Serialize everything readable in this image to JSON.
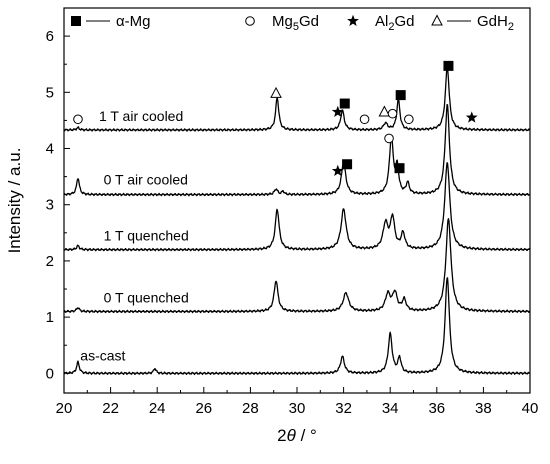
{
  "chart_data": {
    "type": "line",
    "xlabel_pre": "2",
    "xlabel_theta": "θ",
    "xlabel_post": " / °",
    "ylabel": "Intensity / a.u.",
    "xlim": [
      20,
      40
    ],
    "ylim": [
      -0.35,
      6.5
    ],
    "xticks": [
      20,
      22,
      24,
      26,
      28,
      30,
      32,
      34,
      36,
      38,
      40
    ],
    "yticks": [
      0,
      1,
      2,
      3,
      4,
      5,
      6
    ],
    "legend": [
      {
        "symbol": "square",
        "label": "α-Mg"
      },
      {
        "symbol": "circle",
        "label_main": "Mg",
        "label_sub": "5",
        "label_tail": "Gd"
      },
      {
        "symbol": "star",
        "label_main": "Al",
        "label_sub": "2",
        "label_tail": "Gd"
      },
      {
        "symbol": "triangle",
        "label_main": "GdH",
        "label_sub": "2",
        "label_tail": ""
      }
    ],
    "series": [
      {
        "name": "as-cast",
        "baseline": 0.0,
        "label_x": 20.7,
        "label_y": 0.32,
        "peaks": [
          [
            20.6,
            0.2,
            0.07
          ],
          [
            23.9,
            0.09,
            0.06
          ],
          [
            31.95,
            0.3,
            0.1
          ],
          [
            34.0,
            0.7,
            0.1
          ],
          [
            34.4,
            0.27,
            0.08
          ],
          [
            36.45,
            1.72,
            0.11
          ]
        ],
        "markers": []
      },
      {
        "name": "0 T quenched",
        "baseline": 1.1,
        "label_x": 21.7,
        "label_y": 1.35,
        "peaks": [
          [
            20.6,
            0.07,
            0.07
          ],
          [
            29.1,
            0.55,
            0.1
          ],
          [
            32.1,
            0.33,
            0.14
          ],
          [
            33.9,
            0.3,
            0.13
          ],
          [
            34.2,
            0.32,
            0.12
          ],
          [
            34.6,
            0.2,
            0.1
          ],
          [
            36.5,
            1.65,
            0.13
          ]
        ],
        "markers": []
      },
      {
        "name": "1 T quenched",
        "baseline": 2.2,
        "label_x": 21.7,
        "label_y": 2.45,
        "peaks": [
          [
            20.6,
            0.07,
            0.07
          ],
          [
            29.15,
            0.72,
            0.1
          ],
          [
            32.0,
            0.72,
            0.13
          ],
          [
            33.8,
            0.45,
            0.13
          ],
          [
            34.1,
            0.55,
            0.11
          ],
          [
            34.55,
            0.28,
            0.1
          ],
          [
            36.45,
            1.55,
            0.13
          ]
        ],
        "markers": []
      },
      {
        "name": "0 T air cooled",
        "baseline": 3.18,
        "label_x": 21.7,
        "label_y": 3.45,
        "peaks": [
          [
            20.6,
            0.3,
            0.07
          ],
          [
            29.1,
            0.1,
            0.08
          ],
          [
            29.4,
            0.06,
            0.06
          ],
          [
            32.0,
            0.58,
            0.11
          ],
          [
            34.05,
            1.0,
            0.1
          ],
          [
            34.3,
            0.45,
            0.08
          ],
          [
            34.75,
            0.2,
            0.08
          ],
          [
            36.45,
            1.6,
            0.11
          ]
        ],
        "markers": [
          {
            "symbol": "star",
            "x": 31.75,
            "y": 3.6
          },
          {
            "symbol": "square",
            "x": 32.15,
            "y": 3.72
          },
          {
            "symbol": "circle",
            "x": 33.95,
            "y": 4.18
          },
          {
            "symbol": "square",
            "x": 34.4,
            "y": 3.65
          }
        ]
      },
      {
        "name": "1 T air cooled",
        "baseline": 4.33,
        "label_x": 21.5,
        "label_y": 4.58,
        "peaks": [
          [
            20.6,
            0.04,
            0.07
          ],
          [
            29.15,
            0.58,
            0.08
          ],
          [
            31.95,
            0.35,
            0.09
          ],
          [
            33.8,
            0.12,
            0.1
          ],
          [
            34.35,
            0.55,
            0.08
          ],
          [
            36.45,
            1.12,
            0.1
          ]
        ],
        "markers": [
          {
            "symbol": "circle",
            "x": 20.6,
            "y": 4.52
          },
          {
            "symbol": "triangle",
            "x": 29.1,
            "y": 4.98
          },
          {
            "symbol": "star",
            "x": 31.75,
            "y": 4.65
          },
          {
            "symbol": "square",
            "x": 32.05,
            "y": 4.8
          },
          {
            "symbol": "circle",
            "x": 32.9,
            "y": 4.52
          },
          {
            "symbol": "triangle",
            "x": 33.75,
            "y": 4.65
          },
          {
            "symbol": "circle",
            "x": 34.1,
            "y": 4.62
          },
          {
            "symbol": "square",
            "x": 34.45,
            "y": 4.95
          },
          {
            "symbol": "circle",
            "x": 34.8,
            "y": 4.52
          },
          {
            "symbol": "square",
            "x": 36.5,
            "y": 5.47
          },
          {
            "symbol": "star",
            "x": 37.5,
            "y": 4.55
          }
        ]
      }
    ]
  }
}
